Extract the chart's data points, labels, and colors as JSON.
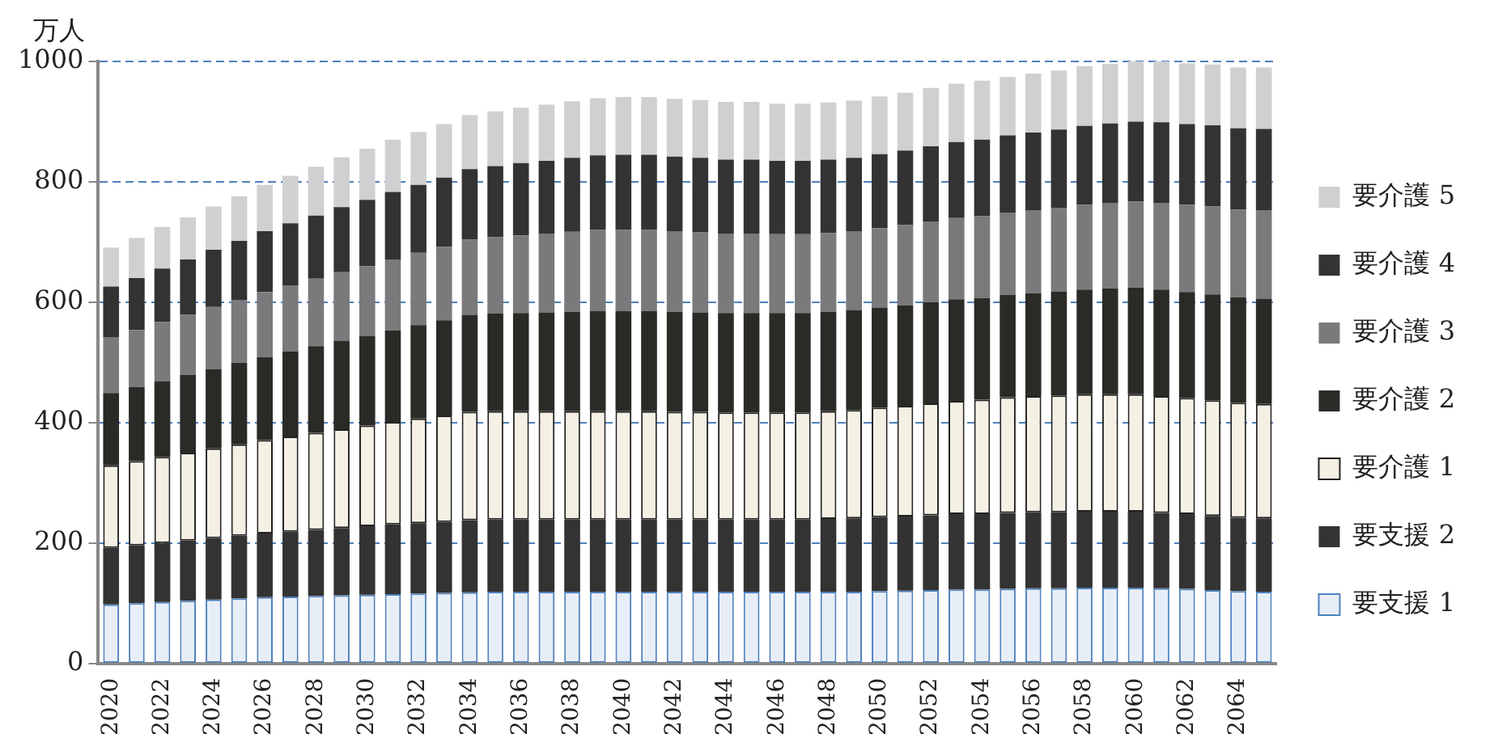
{
  "chart_data": {
    "type": "bar",
    "stacked": true,
    "ylabel": "万人",
    "categories": [
      "2020",
      null,
      "2022",
      null,
      "2024",
      null,
      "2026",
      null,
      "2028",
      null,
      "2030",
      null,
      "2032",
      null,
      "2034",
      null,
      "2036",
      null,
      "2038",
      null,
      "2040",
      null,
      "2042",
      null,
      "2044",
      null,
      "2046",
      null,
      "2048",
      null,
      "2050",
      null,
      "2052",
      null,
      "2054",
      null,
      "2056",
      null,
      "2058",
      null,
      "2060",
      null,
      "2062",
      null,
      "2064",
      null
    ],
    "series": [
      {
        "name": "要支援 1",
        "color": "#e8eef7",
        "values": [
          98,
          100,
          102,
          104,
          106,
          108,
          110,
          111,
          112,
          113,
          114,
          115,
          116,
          117,
          118,
          119,
          119,
          119,
          119,
          119,
          119,
          119,
          119,
          119,
          119,
          119,
          119,
          119,
          119,
          119,
          120,
          121,
          122,
          123,
          123,
          124,
          125,
          125,
          126,
          126,
          126,
          125,
          124,
          122,
          120,
          119
        ]
      },
      {
        "name": "要支援 2",
        "color": "#333333",
        "values": [
          94,
          96,
          98,
          100,
          102,
          104,
          106,
          108,
          110,
          112,
          114,
          116,
          117,
          118,
          120,
          120,
          120,
          120,
          120,
          120,
          120,
          120,
          120,
          120,
          120,
          120,
          120,
          120,
          121,
          122,
          123,
          123,
          124,
          125,
          125,
          126,
          126,
          126,
          126,
          126,
          126,
          125,
          124,
          123,
          122,
          122
        ]
      },
      {
        "name": "要介護 1",
        "color": "#f5f0e4",
        "values": [
          137,
          140,
          143,
          146,
          149,
          152,
          155,
          158,
          161,
          164,
          167,
          170,
          174,
          177,
          180,
          180,
          180,
          180,
          180,
          180,
          180,
          180,
          179,
          179,
          178,
          178,
          178,
          178,
          179,
          180,
          182,
          184,
          186,
          188,
          190,
          192,
          193,
          194,
          195,
          195,
          195,
          194,
          193,
          192,
          191,
          190
        ]
      },
      {
        "name": "要介護 2",
        "color": "#2a2a26",
        "values": [
          120,
          123,
          126,
          129,
          132,
          135,
          138,
          141,
          144,
          147,
          149,
          152,
          155,
          158,
          161,
          162,
          163,
          164,
          165,
          166,
          166,
          166,
          166,
          165,
          165,
          165,
          165,
          165,
          165,
          166,
          166,
          167,
          168,
          169,
          169,
          170,
          171,
          173,
          174,
          176,
          177,
          177,
          176,
          176,
          175,
          175
        ]
      },
      {
        "name": "要介護 3",
        "color": "#7a7a7c",
        "values": [
          93,
          95,
          98,
          100,
          103,
          105,
          108,
          110,
          112,
          114,
          116,
          118,
          120,
          122,
          125,
          127,
          129,
          131,
          133,
          135,
          135,
          135,
          134,
          133,
          132,
          132,
          131,
          131,
          131,
          131,
          132,
          133,
          134,
          135,
          136,
          137,
          138,
          139,
          141,
          142,
          143,
          144,
          145,
          146,
          146,
          147
        ]
      },
      {
        "name": "要介護 4",
        "color": "#333333",
        "values": [
          84,
          86,
          89,
          92,
          95,
          98,
          101,
          103,
          105,
          108,
          110,
          112,
          113,
          115,
          117,
          118,
          120,
          121,
          123,
          124,
          125,
          125,
          124,
          124,
          123,
          123,
          122,
          122,
          122,
          122,
          123,
          124,
          125,
          126,
          127,
          128,
          129,
          130,
          131,
          132,
          133,
          134,
          134,
          135,
          135,
          135
        ]
      },
      {
        "name": "要介護 5",
        "color": "#d0d0d2",
        "values": [
          65,
          67,
          69,
          70,
          72,
          74,
          77,
          79,
          81,
          83,
          85,
          87,
          88,
          89,
          90,
          91,
          92,
          93,
          94,
          95,
          96,
          96,
          96,
          96,
          96,
          96,
          95,
          95,
          95,
          95,
          96,
          96,
          97,
          97,
          98,
          97,
          98,
          98,
          99,
          99,
          100,
          101,
          101,
          101,
          101,
          102
        ]
      }
    ],
    "ylim": [
      0,
      1000
    ],
    "yticks": [
      0,
      200,
      400,
      600,
      800,
      1000
    ],
    "grid": "y",
    "legend": "right"
  }
}
